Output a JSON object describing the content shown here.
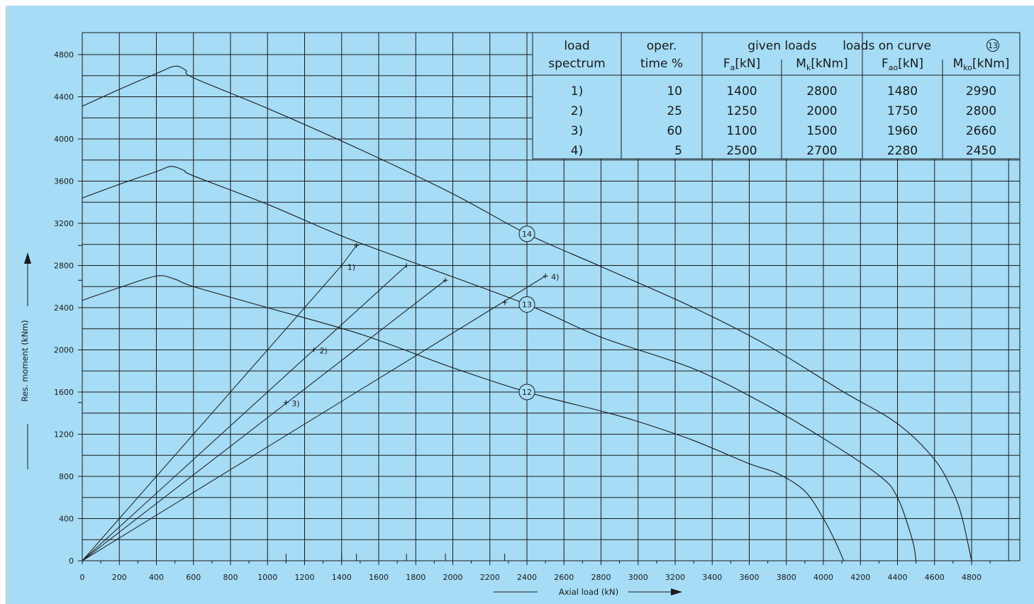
{
  "chart_data": {
    "type": "line",
    "xlabel": "Axial load (kN)",
    "ylabel": "Res. moment (kNm)",
    "xlim": [
      0,
      5000
    ],
    "ylim": [
      0,
      5000
    ],
    "grid": true,
    "x_ticks": [
      "0",
      "200",
      "400",
      "600",
      "800",
      "1000",
      "1200",
      "1400",
      "1600",
      "1800",
      "2000",
      "2200",
      "2400",
      "2600",
      "2800",
      "3000",
      "3200",
      "3400",
      "3600",
      "3800",
      "4000",
      "4200",
      "4400",
      "4600",
      "4800"
    ],
    "y_ticks": [
      "0",
      "400",
      "800",
      "1200",
      "1600",
      "2000",
      "2400",
      "2800",
      "3200",
      "3600",
      "4000",
      "4400",
      "4800"
    ],
    "curves": [
      {
        "label": "12",
        "points": [
          [
            0,
            2470
          ],
          [
            200,
            2590
          ],
          [
            400,
            2700
          ],
          [
            500,
            2670
          ],
          [
            600,
            2600
          ],
          [
            1000,
            2400
          ],
          [
            1500,
            2150
          ],
          [
            2000,
            1830
          ],
          [
            2400,
            1600
          ],
          [
            2800,
            1420
          ],
          [
            3000,
            1320
          ],
          [
            3300,
            1140
          ],
          [
            3600,
            920
          ],
          [
            3750,
            830
          ],
          [
            3900,
            660
          ],
          [
            4000,
            400
          ],
          [
            4060,
            200
          ],
          [
            4110,
            0
          ]
        ]
      },
      {
        "label": "13",
        "points": [
          [
            0,
            3440
          ],
          [
            200,
            3570
          ],
          [
            400,
            3690
          ],
          [
            480,
            3740
          ],
          [
            550,
            3700
          ],
          [
            600,
            3650
          ],
          [
            1000,
            3380
          ],
          [
            1400,
            3080
          ],
          [
            1800,
            2820
          ],
          [
            2400,
            2430
          ],
          [
            2800,
            2120
          ],
          [
            3300,
            1820
          ],
          [
            3700,
            1470
          ],
          [
            4000,
            1160
          ],
          [
            4300,
            810
          ],
          [
            4400,
            600
          ],
          [
            4480,
            200
          ],
          [
            4500,
            0
          ]
        ]
      },
      {
        "label": "14",
        "points": [
          [
            0,
            4310
          ],
          [
            200,
            4470
          ],
          [
            400,
            4620
          ],
          [
            500,
            4690
          ],
          [
            560,
            4650
          ],
          [
            600,
            4580
          ],
          [
            1000,
            4290
          ],
          [
            1500,
            3900
          ],
          [
            2000,
            3480
          ],
          [
            2400,
            3100
          ],
          [
            2800,
            2790
          ],
          [
            3300,
            2400
          ],
          [
            3700,
            2040
          ],
          [
            4100,
            1610
          ],
          [
            4400,
            1300
          ],
          [
            4600,
            960
          ],
          [
            4700,
            650
          ],
          [
            4750,
            400
          ],
          [
            4800,
            0
          ]
        ]
      }
    ],
    "spectrum_lines": [
      {
        "label": "1)",
        "end": [
          1400,
          2800
        ],
        "point_on_curve": [
          1480,
          2990
        ]
      },
      {
        "label": "2)",
        "marker": [
          1250,
          2000
        ],
        "end": [
          1750,
          2800
        ]
      },
      {
        "label": "3)",
        "marker": [
          1100,
          1500
        ],
        "end": [
          1960,
          2660
        ]
      },
      {
        "label": "4)",
        "end": [
          2500,
          2700
        ],
        "point_on_curve": [
          2280,
          2450
        ]
      }
    ],
    "table": {
      "headers": {
        "load_spectrum": [
          "load",
          "spectrum"
        ],
        "oper_time": [
          "oper.",
          "time %"
        ],
        "given_loads": "given loads",
        "loads_on_curve": "loads on curve",
        "loads_on_curve_ref": "13",
        "fa": {
          "main": "F",
          "sub": "a",
          "unit": "[kN]"
        },
        "mk": {
          "main": "M",
          "sub": "k",
          "unit": "[kNm]"
        },
        "fao": {
          "main": "F",
          "sub": "ao",
          "unit": "[kN]"
        },
        "mko": {
          "main": "M",
          "sub": "ko",
          "unit": "[kNm]"
        }
      },
      "rows": [
        {
          "spectrum": "1)",
          "time": "10",
          "fa": "1400",
          "mk": "2800",
          "fao": "1480",
          "mko": "2990"
        },
        {
          "spectrum": "2)",
          "time": "25",
          "fa": "1250",
          "mk": "2000",
          "fao": "1750",
          "mko": "2800"
        },
        {
          "spectrum": "3)",
          "time": "60",
          "fa": "1100",
          "mk": "1500",
          "fao": "1960",
          "mko": "2660"
        },
        {
          "spectrum": "4)",
          "time": "5",
          "fa": "2500",
          "mk": "2700",
          "fao": "2280",
          "mko": "2450"
        }
      ]
    },
    "colors": {
      "background": "#a6dcf5",
      "grid": "#1a1a1a",
      "curve": "#1a1a1a"
    }
  }
}
